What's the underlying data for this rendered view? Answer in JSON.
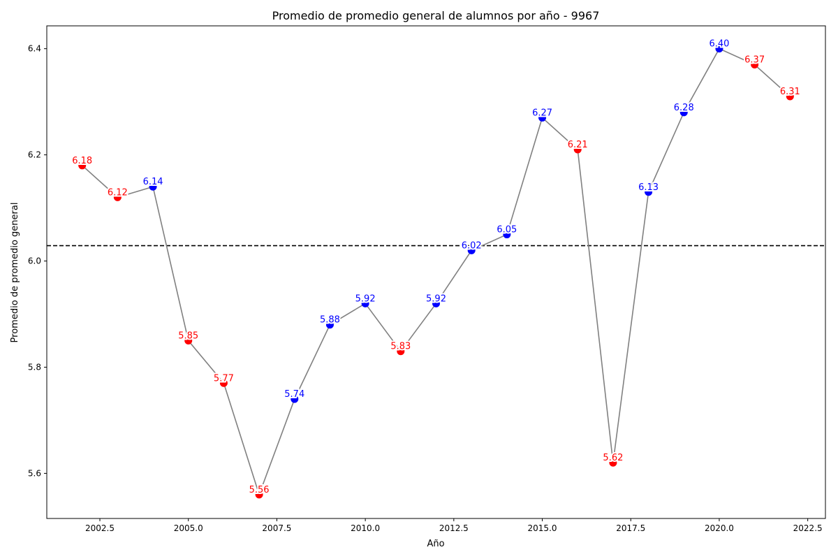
{
  "chart_data": {
    "type": "line",
    "title": "Promedio de promedio general de alumnos por año - 9967",
    "xlabel": "Año",
    "ylabel": "Promedio de promedio general",
    "xlim": [
      2001.0,
      2023.0
    ],
    "ylim": [
      5.515,
      6.443
    ],
    "x_ticks": [
      2002.5,
      2005.0,
      2007.5,
      2010.0,
      2012.5,
      2015.0,
      2017.5,
      2020.0,
      2022.5
    ],
    "x_tick_labels": [
      "2002.5",
      "2005.0",
      "2007.5",
      "2010.0",
      "2012.5",
      "2015.0",
      "2017.5",
      "2020.0",
      "2022.5"
    ],
    "y_ticks": [
      5.6,
      5.8,
      6.0,
      6.2,
      6.4
    ],
    "y_tick_labels": [
      "5.6",
      "5.8",
      "6.0",
      "6.2",
      "6.4"
    ],
    "grid": false,
    "mean_line": 6.029,
    "colors": {
      "line": "#808080",
      "increase": "#0000ff",
      "decrease": "#ff0000",
      "mean": "#000000"
    },
    "points": [
      {
        "x": 2002,
        "y": 6.18,
        "label": "6.18",
        "color": "red"
      },
      {
        "x": 2003,
        "y": 6.12,
        "label": "6.12",
        "color": "red"
      },
      {
        "x": 2004,
        "y": 6.14,
        "label": "6.14",
        "color": "blue"
      },
      {
        "x": 2005,
        "y": 5.85,
        "label": "5.85",
        "color": "red"
      },
      {
        "x": 2006,
        "y": 5.77,
        "label": "5.77",
        "color": "red"
      },
      {
        "x": 2007,
        "y": 5.56,
        "label": "5.56",
        "color": "red"
      },
      {
        "x": 2008,
        "y": 5.74,
        "label": "5.74",
        "color": "blue"
      },
      {
        "x": 2009,
        "y": 5.88,
        "label": "5.88",
        "color": "blue"
      },
      {
        "x": 2010,
        "y": 5.92,
        "label": "5.92",
        "color": "blue"
      },
      {
        "x": 2011,
        "y": 5.83,
        "label": "5.83",
        "color": "red"
      },
      {
        "x": 2012,
        "y": 5.92,
        "label": "5.92",
        "color": "blue"
      },
      {
        "x": 2013,
        "y": 6.02,
        "label": "6.02",
        "color": "blue"
      },
      {
        "x": 2014,
        "y": 6.05,
        "label": "6.05",
        "color": "blue"
      },
      {
        "x": 2015,
        "y": 6.27,
        "label": "6.27",
        "color": "blue"
      },
      {
        "x": 2016,
        "y": 6.21,
        "label": "6.21",
        "color": "red"
      },
      {
        "x": 2017,
        "y": 5.62,
        "label": "5.62",
        "color": "red"
      },
      {
        "x": 2018,
        "y": 6.13,
        "label": "6.13",
        "color": "blue"
      },
      {
        "x": 2019,
        "y": 6.28,
        "label": "6.28",
        "color": "blue"
      },
      {
        "x": 2020,
        "y": 6.4,
        "label": "6.40",
        "color": "blue"
      },
      {
        "x": 2021,
        "y": 6.37,
        "label": "6.37",
        "color": "red"
      },
      {
        "x": 2022,
        "y": 6.31,
        "label": "6.31",
        "color": "red"
      }
    ]
  }
}
